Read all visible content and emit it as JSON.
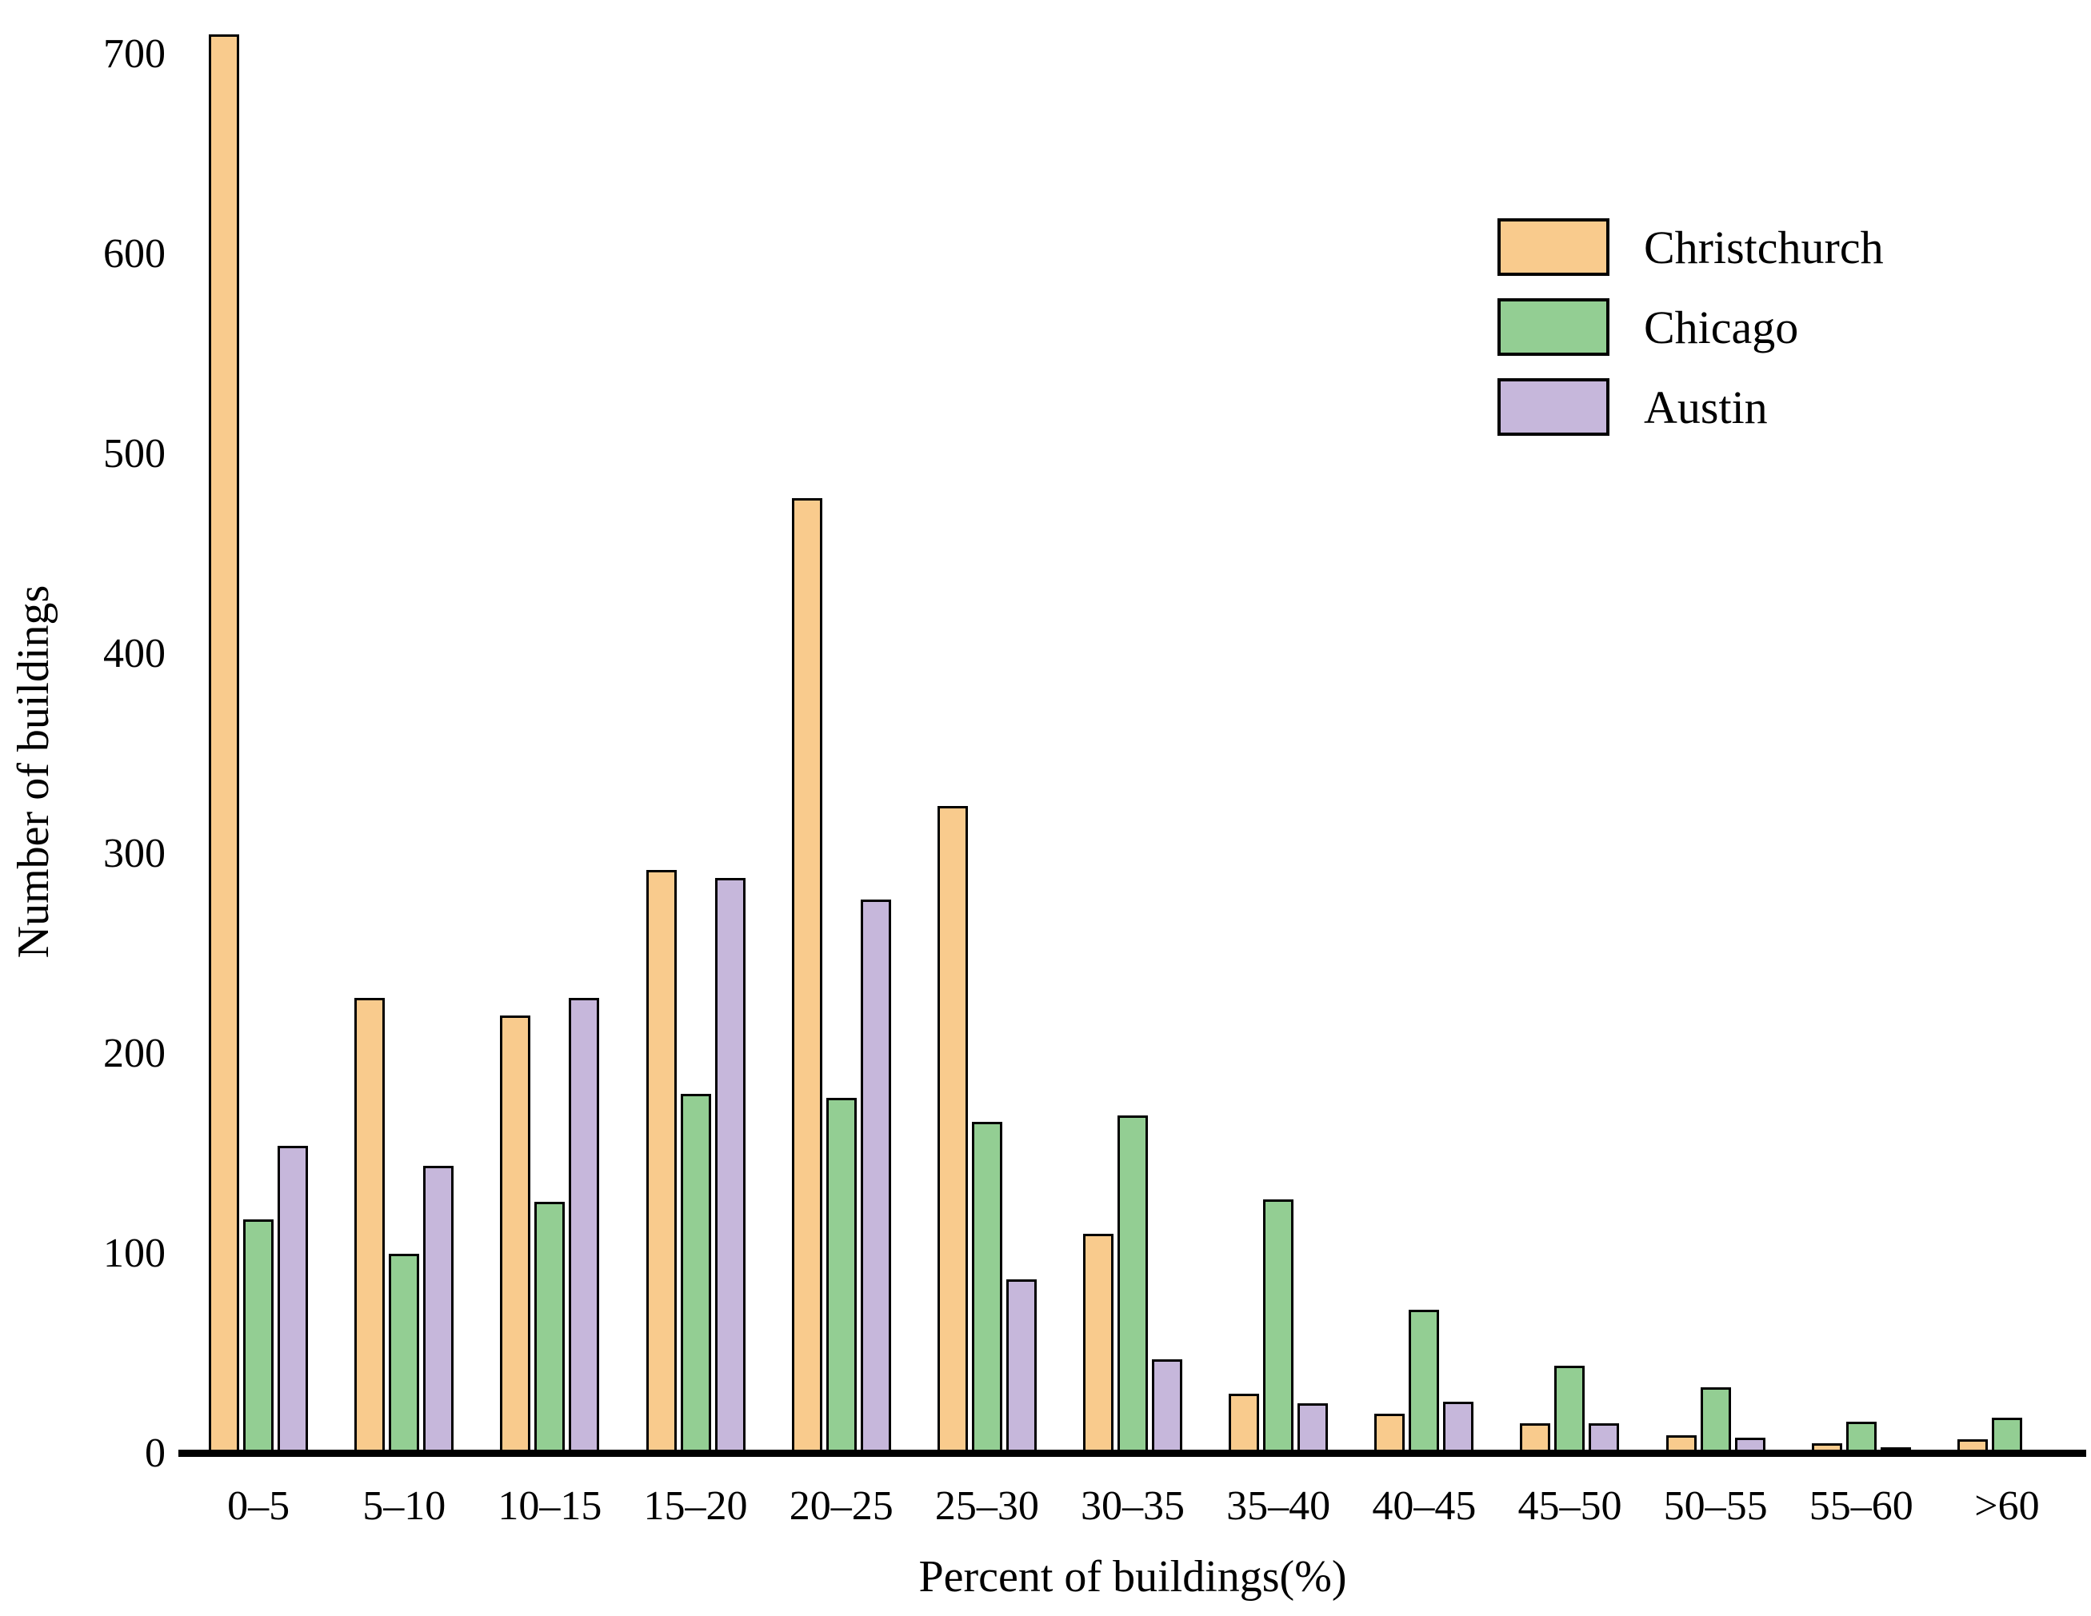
{
  "chart_data": {
    "type": "bar",
    "title": "",
    "xlabel": "Percent of buildings(%)",
    "ylabel": "Number of buildings",
    "categories": [
      "0–5",
      "5–10",
      "10–15",
      "15–20",
      "20–25",
      "25–30",
      "30–35",
      "35–40",
      "40–45",
      "45–50",
      "50–55",
      "55–60",
      ">60"
    ],
    "series": [
      {
        "name": "Christchurch",
        "color": "#F9CB8D",
        "values": [
          710,
          228,
          219,
          292,
          478,
          324,
          110,
          30,
          20,
          15,
          9,
          5,
          7
        ]
      },
      {
        "name": "Chicago",
        "color": "#93CE93",
        "values": [
          117,
          100,
          126,
          180,
          178,
          166,
          169,
          127,
          72,
          44,
          33,
          16,
          18
        ]
      },
      {
        "name": "Austin",
        "color": "#C6B7DB",
        "values": [
          154,
          144,
          228,
          288,
          277,
          87,
          47,
          25,
          26,
          15,
          8,
          3,
          2
        ]
      }
    ],
    "ylim": [
      0,
      700
    ],
    "yticks": [
      0,
      100,
      200,
      300,
      400,
      500,
      600,
      700
    ],
    "grid": false,
    "legend_position": "upper right",
    "bar_border_color": "#000000",
    "axis_color": "#000000",
    "background": "#ffffff"
  },
  "layout_note": "grouped vertical bar chart, no y-axis spine, no gridlines"
}
